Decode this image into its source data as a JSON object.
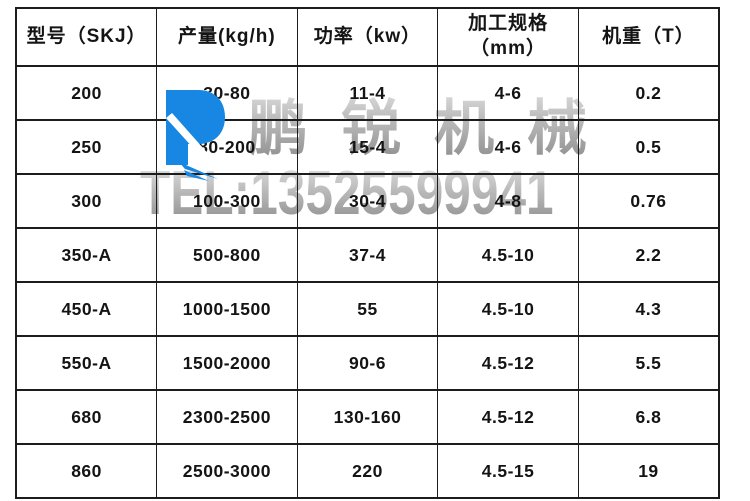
{
  "page": {
    "background": "#ffffff"
  },
  "table": {
    "headers": [
      [
        "型号（SKJ）"
      ],
      [
        "产量(kg/h)"
      ],
      [
        "功率（kw）"
      ],
      [
        "加工规格",
        "（mm）"
      ],
      [
        "机重（T）"
      ]
    ],
    "rows": [
      [
        "200",
        "30-80",
        "11-4",
        "4-6",
        "0.2"
      ],
      [
        "250",
        "80-200",
        "15-4",
        "4-6",
        "0.5"
      ],
      [
        "300",
        "100-300",
        "30-4",
        "4-8",
        "0.76"
      ],
      [
        "350-A",
        "500-800",
        "37-4",
        "4.5-10",
        "2.2"
      ],
      [
        "450-A",
        "1000-1500",
        "55",
        "4.5-10",
        "4.3"
      ],
      [
        "550-A",
        "1500-2000",
        "90-6",
        "4.5-12",
        "5.5"
      ],
      [
        "680",
        "2300-2500",
        "130-160",
        "4.5-12",
        "6.8"
      ],
      [
        "860",
        "2500-3000",
        "220",
        "4.5-15",
        "19"
      ]
    ]
  },
  "watermark": {
    "brand_text": "鹏锐机械",
    "tel_text": "TEL:13525599941",
    "logo_letter": "P",
    "colors": {
      "logo_blue": "#1787e3",
      "watermark_gray_light": "#e8e8e8",
      "watermark_gray_dark": "#828282",
      "table_border": "#1c1c1c"
    }
  }
}
